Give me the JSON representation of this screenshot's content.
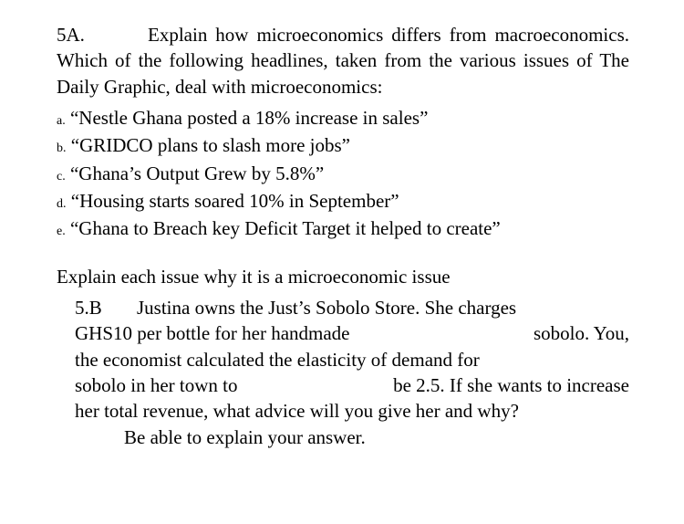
{
  "q5a": {
    "number": "5A.",
    "text": "Explain how microeconomics differs from macroeconomics. Which of the following headlines, taken from the various issues of The Daily Graphic, deal with microeconomics:"
  },
  "options": {
    "a": {
      "letter": "a.",
      "text": "“Nestle Ghana posted a 18% increase in sales”"
    },
    "b": {
      "letter": "b.",
      "text": "“GRIDCO plans to slash more jobs”"
    },
    "c": {
      "letter": "c.",
      "text": "“Ghana’s Output Grew by 5.8%”"
    },
    "d": {
      "letter": "d.",
      "text": "“Housing starts soared 10% in September”"
    },
    "e": {
      "letter": "e.",
      "text": "“Ghana to Breach key Deficit Target it helped to create”"
    }
  },
  "explain": "Explain each issue why it is a microeconomic issue",
  "q5b": {
    "number": "5.B",
    "l1": "Justina owns the Just’s Sobolo Store. She charges",
    "l2_left": "GHS10 per bottle for her handmade",
    "l2_right": "sobolo. You,",
    "l3": "the economist calculated the elasticity of demand for",
    "l4_left": "sobolo in her town to",
    "l4_right": "be 2.5. If she wants to increase",
    "l5": "her total revenue, what advice will you give her and why?",
    "l6": "Be able to explain your answer."
  }
}
